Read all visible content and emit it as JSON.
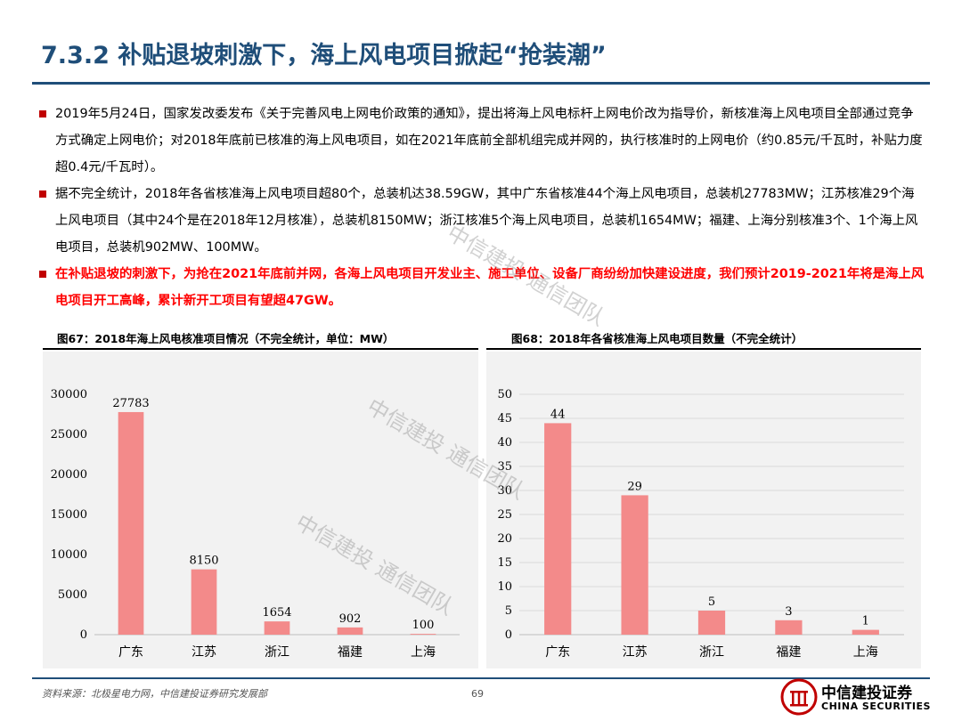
{
  "title": "7.3.2 补贴退坡刺激下，海上风电项目掀起“抢装潮”",
  "bullets": [
    "2019年5月24日，国家发改委发布《关于完善风电上网电价政策的通知》，提出将海上风电标杆上网电价改为指导价，新核准海上风电项目全部通过竞争方式确定上网电价；对2018年底前已核准的海上风电项目，如在2021年底前全部机组完成并网的，执行核准时的上网电价（约0.85元/千瓦时，补贴力度超0.4元/千瓦时）。",
    "据不完全统计，2018年各省核准海上风电项目超80个，总装机达38.59GW，其中广东省核准44个海上风电项目，总装机27783MW；江苏核准29个海上风电项目（其中24个是在2018年12月核准），总装机8150MW；浙江核准5个海上风电项目，总装机1654MW；福建、上海分别核准3个、1个海上风电项目，总装机902MW、100MW。",
    "在补贴退坡的刺激下，为抢在2021年底前并网，各海上风电项目开发业主、施工单位、设备厂商纷纷加快建设进度，我们预计2019-2021年将是海上风电项目开工高峰，累计新开工项目有望超47GW。"
  ],
  "fig67_title": "图67：2018年海上风电核准项目情况（不完全统计，单位：MW）",
  "fig68_title": "图68：2018年各省核准海上风电项目数量（不完全统计）",
  "chart_data": [
    {
      "type": "bar",
      "categories": [
        "广东",
        "江苏",
        "浙江",
        "福建",
        "上海"
      ],
      "values": [
        27783,
        8150,
        1654,
        902,
        100
      ],
      "ylim": [
        0,
        30000
      ],
      "yticks": [
        "0",
        "5000",
        "10000",
        "15000",
        "20000",
        "25000",
        "30000"
      ],
      "bar_color": "#f38a8a"
    },
    {
      "type": "bar",
      "categories": [
        "广东",
        "江苏",
        "浙江",
        "福建",
        "上海"
      ],
      "values": [
        44,
        29,
        5,
        3,
        1
      ],
      "ylim": [
        0,
        50
      ],
      "yticks": [
        "0",
        "5",
        "10",
        "15",
        "20",
        "25",
        "30",
        "35",
        "40",
        "45",
        "50"
      ],
      "bar_color": "#f38a8a"
    }
  ],
  "watermark": "中信建投 通信团队",
  "footer": {
    "source": "资料来源：北极星电力网，中信建投证券研究发展部",
    "page": "69",
    "brand_cn": "中信建投证券",
    "brand_en": "CHINA SECURITIES"
  },
  "colors": {
    "title": "#1f4e79",
    "bullet_marker": "#c00000",
    "highlight_text": "#ff0000",
    "bar": "#f38a8a"
  }
}
